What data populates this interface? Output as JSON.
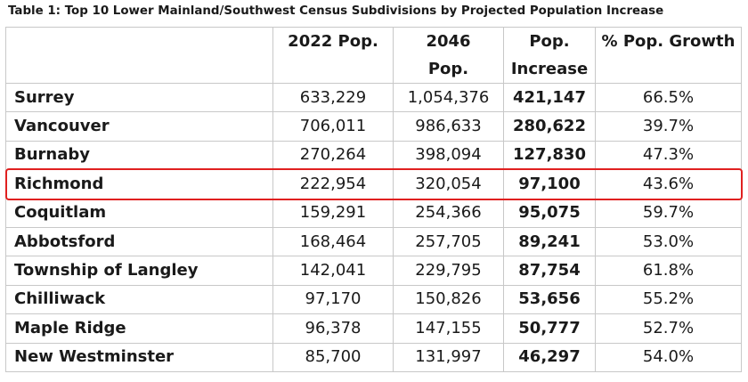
{
  "caption": "Table 1: Top 10 Lower Mainland/Southwest Census Subdivisions by Projected Population Increase",
  "headers": {
    "name": "",
    "pop2022": "2022 Pop.",
    "pop2046_line1": "2046",
    "pop2046_line2": "Pop.",
    "increase_line1": "Pop.",
    "increase_line2": "Increase",
    "growth": "% Pop. Growth"
  },
  "rows": [
    {
      "name": "Surrey",
      "pop2022": "633,229",
      "pop2046": "1,054,376",
      "increase": "421,147",
      "growth": "66.5%"
    },
    {
      "name": "Vancouver",
      "pop2022": "706,011",
      "pop2046": "986,633",
      "increase": "280,622",
      "growth": "39.7%"
    },
    {
      "name": "Burnaby",
      "pop2022": "270,264",
      "pop2046": "398,094",
      "increase": "127,830",
      "growth": "47.3%"
    },
    {
      "name": "Richmond",
      "pop2022": "222,954",
      "pop2046": "320,054",
      "increase": "97,100",
      "growth": "43.6%"
    },
    {
      "name": "Coquitlam",
      "pop2022": "159,291",
      "pop2046": "254,366",
      "increase": "95,075",
      "growth": "59.7%"
    },
    {
      "name": "Abbotsford",
      "pop2022": "168,464",
      "pop2046": "257,705",
      "increase": "89,241",
      "growth": "53.0%"
    },
    {
      "name": "Township of Langley",
      "pop2022": "142,041",
      "pop2046": "229,795",
      "increase": "87,754",
      "growth": "61.8%"
    },
    {
      "name": "Chilliwack",
      "pop2022": "97,170",
      "pop2046": "150,826",
      "increase": "53,656",
      "growth": "55.2%"
    },
    {
      "name": "Maple Ridge",
      "pop2022": "96,378",
      "pop2046": "147,155",
      "increase": "50,777",
      "growth": "52.7%"
    },
    {
      "name": "New Westminster",
      "pop2022": "85,700",
      "pop2046": "131,997",
      "increase": "46,297",
      "growth": "54.0%"
    }
  ],
  "highlighted_row": "Richmond",
  "colors": {
    "highlight": "#e02020",
    "border": "#c8c8c8",
    "text": "#1a1a1a"
  }
}
